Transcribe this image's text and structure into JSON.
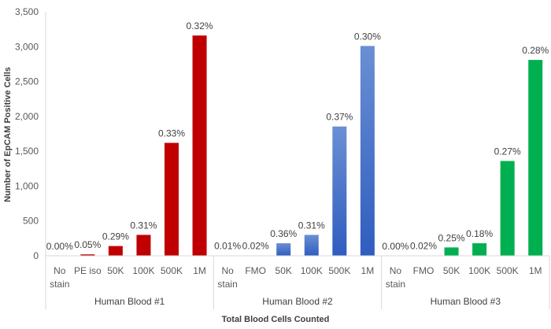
{
  "chart_data": {
    "type": "bar",
    "xlabel": "Total Blood Cells Counted",
    "ylabel": "Number of EpCAM Positive Cells",
    "ylim": [
      0,
      3500
    ],
    "yticks": [
      0,
      500,
      1000,
      1500,
      2000,
      2500,
      3000,
      3500
    ],
    "ytick_labels": [
      "0",
      "500",
      "1,000",
      "1,500",
      "2,000",
      "2,500",
      "3,000",
      "3,500"
    ],
    "grid": false,
    "groups": [
      {
        "name": "Human Blood #1",
        "color": "#C00000",
        "categories": [
          "No stain",
          "PE iso",
          "50K",
          "100K",
          "500K",
          "1M"
        ],
        "values": [
          0,
          20,
          140,
          300,
          1620,
          3160
        ],
        "labels": [
          "0.00%",
          "0.05%",
          "0.29%",
          "0.31%",
          "0.33%",
          "0.32%"
        ]
      },
      {
        "name": "Human Blood #2",
        "color": "#4472C4",
        "categories": [
          "No stain",
          "FMO",
          "50K",
          "100K",
          "500K",
          "1M"
        ],
        "values": [
          3,
          5,
          180,
          300,
          1855,
          3010
        ],
        "labels": [
          "0.01%",
          "0.02%",
          "0.36%",
          "0.31%",
          "0.37%",
          "0.30%"
        ]
      },
      {
        "name": "Human Blood #3",
        "color": "#00B050",
        "categories": [
          "No stain",
          "FMO",
          "50K",
          "100K",
          "500K",
          "1M"
        ],
        "values": [
          0,
          5,
          120,
          180,
          1360,
          2810
        ],
        "labels": [
          "0.00%",
          "0.02%",
          "0.25%",
          "0.18%",
          "0.27%",
          "0.28%"
        ]
      }
    ]
  }
}
